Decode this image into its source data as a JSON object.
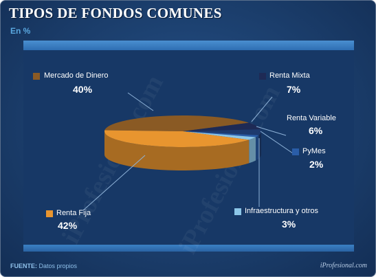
{
  "header": {
    "title": "TIPOS DE FONDOS COMUNES",
    "subtitle": "En %"
  },
  "footer": {
    "source_label": "FUENTE:",
    "source_value": "Datos propios",
    "brand": "iProfesional.com"
  },
  "watermark": "iProfesional.com",
  "chart_data": {
    "type": "pie",
    "title": "TIPOS DE FONDOS COMUNES",
    "subtitle": "En %",
    "slices": [
      {
        "label": "Mercado de Dinero",
        "value": 40,
        "display": "40%",
        "color": "#8a5a24"
      },
      {
        "label": "Renta Mixta",
        "value": 7,
        "display": "7%",
        "color": "#1e2a55"
      },
      {
        "label": "Renta Variable",
        "value": 6,
        "display": "6%",
        "color": "#1d3a6e"
      },
      {
        "label": "PyMes",
        "value": 2,
        "display": "2%",
        "color": "#2a5da8"
      },
      {
        "label": "Infraestructura y otros",
        "value": 3,
        "display": "3%",
        "color": "#8cc6e8"
      },
      {
        "label": "Renta Fija",
        "value": 42,
        "display": "42%",
        "color": "#e8952f"
      }
    ]
  }
}
